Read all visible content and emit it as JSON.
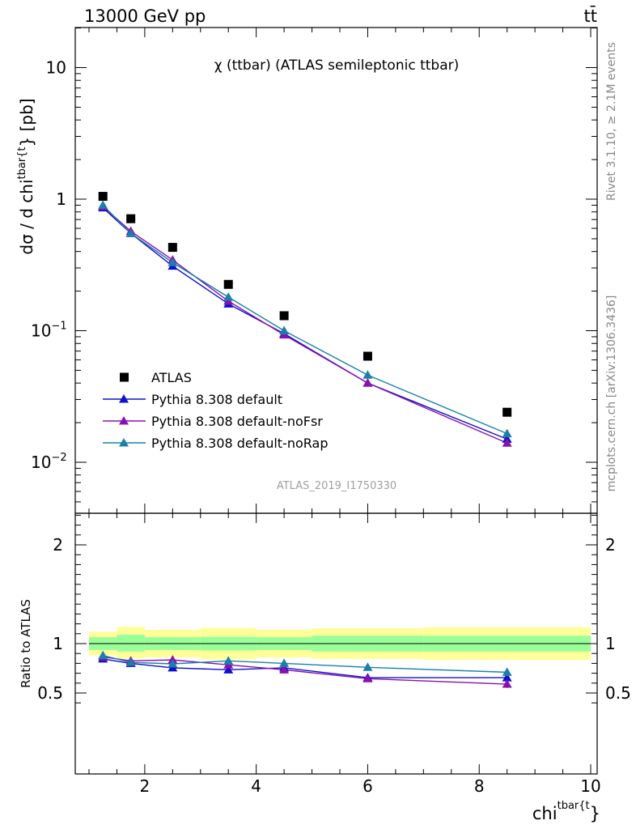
{
  "header": {
    "left": "13000 GeV pp",
    "right": "tt̄"
  },
  "side_labels": {
    "rivet": "Rivet 3.1.10, ≥ 2.1M events",
    "mcplots": "mcplots.cern.ch [arXiv:1306.3436]"
  },
  "chart_data": [
    {
      "type": "scatter",
      "panel": "main",
      "title": "χ (ttbar) (ATLAS semileptonic ttbar)",
      "ylabel": "dσ / d chi^{tbar{t}} [pb]",
      "yscale": "log",
      "ylim": [
        0.004,
        20
      ],
      "xlim": [
        0.8,
        10
      ],
      "yticks": [
        {
          "v": 0.01,
          "base": "10",
          "exp": "−2"
        },
        {
          "v": 0.1,
          "base": "10",
          "exp": "−1"
        },
        {
          "v": 1,
          "base": "1",
          "exp": ""
        },
        {
          "v": 10,
          "base": "10",
          "exp": ""
        }
      ],
      "watermark": "ATLAS_2019_I1750330",
      "legend_position": "bottom-left",
      "series": [
        {
          "name": "ATLAS",
          "color": "#000000",
          "marker": "square",
          "x": [
            1.25,
            1.75,
            2.5,
            3.5,
            4.5,
            6.0,
            8.5
          ],
          "y": [
            1.05,
            0.71,
            0.43,
            0.225,
            0.13,
            0.064,
            0.024
          ]
        },
        {
          "name": "Pythia 8.308 default",
          "color": "#1010cc",
          "marker": "triangle",
          "x": [
            1.25,
            1.75,
            2.5,
            3.5,
            4.5,
            6.0,
            8.5
          ],
          "y": [
            0.86,
            0.55,
            0.31,
            0.16,
            0.095,
            0.04,
            0.015
          ]
        },
        {
          "name": "Pythia 8.308 default-noFsr",
          "color": "#8a10b0",
          "marker": "triangle",
          "x": [
            1.25,
            1.75,
            2.5,
            3.5,
            4.5,
            6.0,
            8.5
          ],
          "y": [
            0.88,
            0.57,
            0.345,
            0.168,
            0.093,
            0.04,
            0.014
          ]
        },
        {
          "name": "Pythia 8.308 default-noRap",
          "color": "#1a80a8",
          "marker": "triangle",
          "x": [
            1.25,
            1.75,
            2.5,
            3.5,
            4.5,
            6.0,
            8.5
          ],
          "y": [
            0.9,
            0.55,
            0.33,
            0.18,
            0.1,
            0.046,
            0.0165
          ]
        }
      ]
    },
    {
      "type": "scatter",
      "panel": "ratio",
      "ylabel": "Ratio to ATLAS",
      "xlabel": "chi^{tbar{t}}",
      "ylim": [
        0.3,
        2.4
      ],
      "xlim": [
        0.8,
        10
      ],
      "yticks": [
        0.5,
        1,
        2
      ],
      "xticks": [
        2,
        4,
        6,
        8,
        10
      ],
      "bands": [
        {
          "x0": 1.0,
          "x1": 1.5,
          "inner": [
            0.935,
            1.065
          ],
          "outer": [
            0.88,
            1.12
          ]
        },
        {
          "x0": 1.5,
          "x1": 2.0,
          "inner": [
            0.92,
            1.09
          ],
          "outer": [
            0.85,
            1.17
          ]
        },
        {
          "x0": 2.0,
          "x1": 3.0,
          "inner": [
            0.935,
            1.065
          ],
          "outer": [
            0.86,
            1.14
          ]
        },
        {
          "x0": 3.0,
          "x1": 4.0,
          "inner": [
            0.93,
            1.07
          ],
          "outer": [
            0.84,
            1.16
          ]
        },
        {
          "x0": 4.0,
          "x1": 5.0,
          "inner": [
            0.935,
            1.065
          ],
          "outer": [
            0.86,
            1.14
          ]
        },
        {
          "x0": 5.0,
          "x1": 7.0,
          "inner": [
            0.92,
            1.08
          ],
          "outer": [
            0.845,
            1.155
          ]
        },
        {
          "x0": 7.0,
          "x1": 10.0,
          "inner": [
            0.92,
            1.08
          ],
          "outer": [
            0.835,
            1.165
          ]
        }
      ],
      "series": [
        {
          "name": "Pythia 8.308 default",
          "color": "#1010cc",
          "x": [
            1.25,
            1.75,
            2.5,
            3.5,
            4.5,
            6.0,
            8.5
          ],
          "y": [
            0.845,
            0.8,
            0.755,
            0.735,
            0.755,
            0.655,
            0.655
          ],
          "err": [
            0.015,
            0.015,
            0.015,
            0.02,
            0.02,
            0.025,
            0.03
          ]
        },
        {
          "name": "Pythia 8.308 default-noFsr",
          "color": "#8a10b0",
          "x": [
            1.25,
            1.75,
            2.5,
            3.5,
            4.5,
            6.0,
            8.5
          ],
          "y": [
            0.865,
            0.825,
            0.835,
            0.785,
            0.735,
            0.645,
            0.59
          ],
          "err": [
            0.015,
            0.015,
            0.015,
            0.02,
            0.025,
            0.03,
            0.04
          ]
        },
        {
          "name": "Pythia 8.308 default-noRap",
          "color": "#1a80a8",
          "x": [
            1.25,
            1.75,
            2.5,
            3.5,
            4.5,
            6.0,
            8.5
          ],
          "y": [
            0.88,
            0.81,
            0.795,
            0.825,
            0.8,
            0.76,
            0.71
          ],
          "err": [
            0.015,
            0.015,
            0.02,
            0.02,
            0.03,
            0.03,
            0.04
          ]
        }
      ]
    }
  ]
}
